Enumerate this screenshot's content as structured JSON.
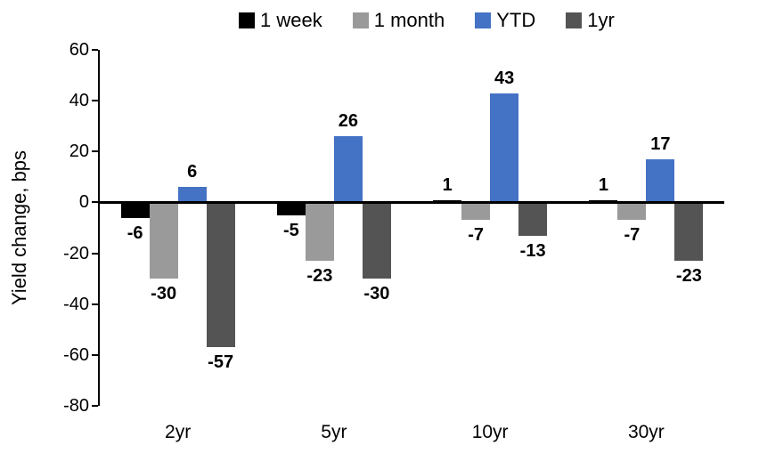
{
  "chart_data": {
    "type": "bar",
    "title": "",
    "ylabel": "Yield change, bps",
    "xlabel": "",
    "categories": [
      "2yr",
      "5yr",
      "10yr",
      "30yr"
    ],
    "series": [
      {
        "name": "1 week",
        "color": "#000000",
        "values": [
          -6,
          -5,
          1,
          1
        ]
      },
      {
        "name": "1 month",
        "color": "#9A9A9A",
        "values": [
          -30,
          -23,
          -7,
          -7
        ]
      },
      {
        "name": "YTD",
        "color": "#4472C4",
        "values": [
          6,
          26,
          43,
          17
        ]
      },
      {
        "name": "1yr",
        "color": "#545454",
        "values": [
          -57,
          -30,
          -13,
          -23
        ]
      }
    ],
    "ylim": [
      -80,
      60
    ],
    "ytick_step": 20,
    "yticks": [
      60,
      40,
      20,
      0,
      -20,
      -40,
      -60,
      -80
    ],
    "grid": false,
    "legend_position": "top",
    "data_labels": true
  },
  "legend": {
    "items": [
      {
        "label": "1 week",
        "color": "#000000"
      },
      {
        "label": "1 month",
        "color": "#9A9A9A"
      },
      {
        "label": "YTD",
        "color": "#4472C4"
      },
      {
        "label": "1yr",
        "color": "#545454"
      }
    ]
  },
  "axes": {
    "y_title": "Yield change, bps"
  }
}
